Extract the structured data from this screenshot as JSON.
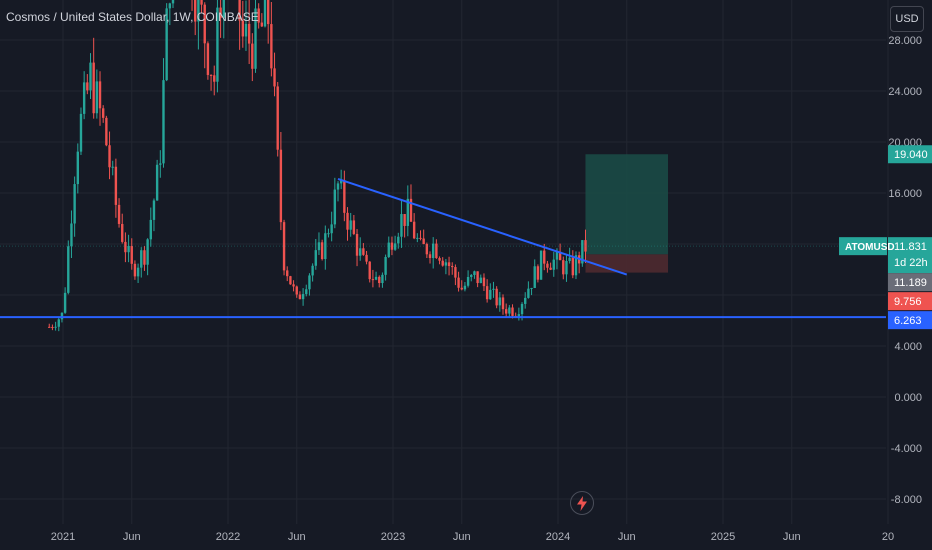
{
  "header": {
    "title": "Cosmos / United States Dollar, 1W, COINBASE",
    "currency_label": "USD"
  },
  "colors": {
    "background": "#161a25",
    "grid": "#222631",
    "axis_text": "#b2b5be",
    "up": "#26a69a",
    "down": "#ef5350",
    "trendline": "#2962ff",
    "support_line": "#2962ff",
    "target_zone": "#1a4a46",
    "stop_zone": "#4e2a30"
  },
  "icons": {
    "bottom_center": "lightning-icon"
  },
  "chart_data": {
    "type": "candlestick",
    "symbol": "ATOMUSD",
    "timeframe": "1W",
    "exchange": "COINBASE",
    "y_ticks": [
      "28.000",
      "24.000",
      "20.000",
      "16.000",
      "4.000",
      "0.000",
      "-4.000",
      "-8.000"
    ],
    "x_ticks": [
      "2021",
      "Jun",
      "2022",
      "Jun",
      "2023",
      "Jun",
      "2024",
      "Jun",
      "2025",
      "Jun",
      "20"
    ],
    "ylim": [
      -9,
      31
    ],
    "price_labels": [
      {
        "id": "target",
        "text": "19.040",
        "color": "#26a69a"
      },
      {
        "id": "current",
        "text": "11.831",
        "color": "#26a69a"
      },
      {
        "id": "countdown",
        "text": "1d 22h",
        "color": "#26a69a"
      },
      {
        "id": "entry",
        "text": "11.189",
        "color": "#6a6d78"
      },
      {
        "id": "stop",
        "text": "9.756",
        "color": "#ef5350"
      },
      {
        "id": "support",
        "text": "6.263",
        "color": "#2962ff"
      }
    ],
    "symbol_badge": "ATOMUSD",
    "support_level": 6.263,
    "trendline": {
      "start": {
        "date": "2022-09",
        "price": 17.1
      },
      "end": {
        "date": "2024-06",
        "price": 9.6
      }
    },
    "position": {
      "entry": 11.189,
      "target": 19.04,
      "stop": 9.756,
      "start_date": "2024-03",
      "end_date": "2024-09"
    },
    "series_outline": [
      {
        "date": "2020-12",
        "price": 5.5
      },
      {
        "date": "2021-01",
        "price": 6.5
      },
      {
        "date": "2021-02",
        "price": 20
      },
      {
        "date": "2021-03",
        "price": 25
      },
      {
        "date": "2021-04",
        "price": 21
      },
      {
        "date": "2021-05",
        "price": 14
      },
      {
        "date": "2021-06",
        "price": 10
      },
      {
        "date": "2021-07",
        "price": 11.5
      },
      {
        "date": "2021-08",
        "price": 18
      },
      {
        "date": "2021-09",
        "price": 38
      },
      {
        "date": "2021-10",
        "price": 36
      },
      {
        "date": "2021-11",
        "price": 30
      },
      {
        "date": "2021-12",
        "price": 25
      },
      {
        "date": "2022-01",
        "price": 40
      },
      {
        "date": "2022-02",
        "price": 28
      },
      {
        "date": "2022-03",
        "price": 28
      },
      {
        "date": "2022-04",
        "price": 30
      },
      {
        "date": "2022-05",
        "price": 11
      },
      {
        "date": "2022-06",
        "price": 7.5
      },
      {
        "date": "2022-07",
        "price": 10
      },
      {
        "date": "2022-08",
        "price": 12
      },
      {
        "date": "2022-09",
        "price": 16.5
      },
      {
        "date": "2022-10",
        "price": 13
      },
      {
        "date": "2022-11",
        "price": 10
      },
      {
        "date": "2022-12",
        "price": 9
      },
      {
        "date": "2023-01",
        "price": 13
      },
      {
        "date": "2023-02",
        "price": 14.5
      },
      {
        "date": "2023-03",
        "price": 11.5
      },
      {
        "date": "2023-04",
        "price": 12
      },
      {
        "date": "2023-05",
        "price": 10.5
      },
      {
        "date": "2023-06",
        "price": 8.5
      },
      {
        "date": "2023-07",
        "price": 9.5
      },
      {
        "date": "2023-08",
        "price": 8.2
      },
      {
        "date": "2023-09",
        "price": 7
      },
      {
        "date": "2023-10",
        "price": 6.8
      },
      {
        "date": "2023-11",
        "price": 9
      },
      {
        "date": "2023-12",
        "price": 11
      },
      {
        "date": "2024-01",
        "price": 10.5
      },
      {
        "date": "2024-02",
        "price": 10
      },
      {
        "date": "2024-03",
        "price": 11.8
      }
    ]
  }
}
